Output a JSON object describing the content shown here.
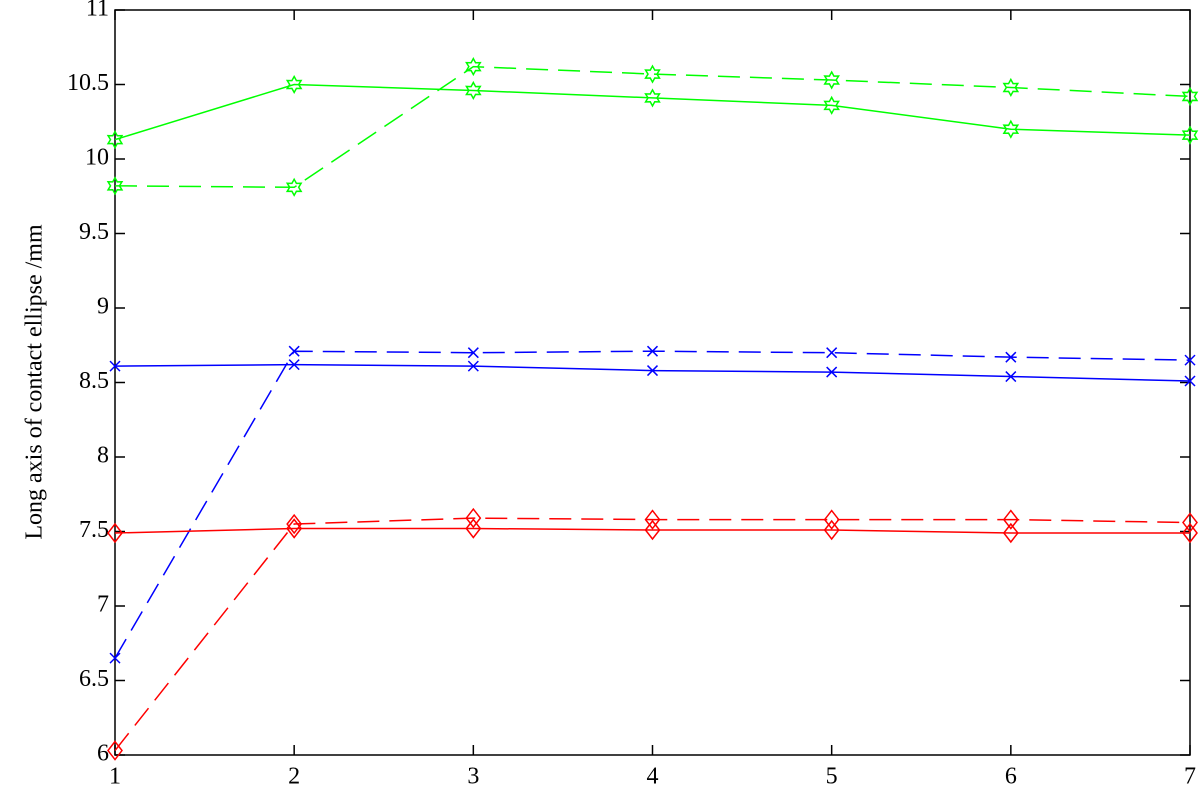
{
  "chart_data": {
    "type": "line",
    "y_label": "Long axis of contact ellipse /mm",
    "x": [
      1,
      2,
      3,
      4,
      5,
      6,
      7
    ],
    "xlim": [
      1,
      7
    ],
    "xticks": [
      1,
      2,
      3,
      4,
      5,
      6,
      7
    ],
    "ylim": [
      6,
      11
    ],
    "yticks": [
      6,
      6.5,
      7,
      7.5,
      8,
      8.5,
      9,
      9.5,
      10,
      10.5,
      11
    ],
    "grid": false,
    "series": [
      {
        "color": "#00ff00",
        "dashed": false,
        "marker": "hexagram",
        "values": [
          10.13,
          10.5,
          10.46,
          10.41,
          10.36,
          10.2,
          10.16
        ]
      },
      {
        "color": "#00ff00",
        "dashed": true,
        "marker": "hexagram",
        "values": [
          9.82,
          9.81,
          10.62,
          10.57,
          10.53,
          10.48,
          10.42
        ]
      },
      {
        "color": "#0000ff",
        "dashed": false,
        "marker": "x",
        "values": [
          8.61,
          8.62,
          8.61,
          8.58,
          8.57,
          8.54,
          8.51
        ]
      },
      {
        "color": "#0000ff",
        "dashed": true,
        "marker": "x",
        "values": [
          6.65,
          8.71,
          8.7,
          8.71,
          8.7,
          8.67,
          8.65
        ]
      },
      {
        "color": "#ff0000",
        "dashed": false,
        "marker": "diamond",
        "values": [
          7.49,
          7.52,
          7.52,
          7.51,
          7.51,
          7.49,
          7.49
        ]
      },
      {
        "color": "#ff0000",
        "dashed": true,
        "marker": "diamond",
        "values": [
          6.03,
          7.55,
          7.59,
          7.58,
          7.58,
          7.58,
          7.56
        ]
      }
    ]
  }
}
